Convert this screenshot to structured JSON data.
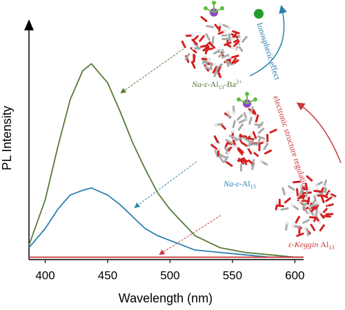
{
  "chart_data": {
    "type": "line",
    "x_label": "Wavelength (nm)",
    "y_label": "PL Intensity",
    "x": [
      387,
      400,
      410,
      420,
      430,
      437,
      450,
      460,
      470,
      480,
      490,
      500,
      520,
      540,
      560,
      580,
      600,
      607
    ],
    "series": [
      {
        "name": "Na-ε-Al13-Ba2+",
        "color": "#557a33",
        "values": [
          0.06,
          0.25,
          0.47,
          0.67,
          0.79,
          0.82,
          0.74,
          0.62,
          0.49,
          0.38,
          0.28,
          0.21,
          0.1,
          0.05,
          0.03,
          0.02,
          0.01,
          0.01
        ]
      },
      {
        "name": "Na-ε-Al13",
        "color": "#2a7fb0",
        "values": [
          0.05,
          0.13,
          0.21,
          0.27,
          0.29,
          0.3,
          0.27,
          0.23,
          0.18,
          0.13,
          0.1,
          0.08,
          0.04,
          0.03,
          0.02,
          0.01,
          0.01,
          0.01
        ]
      },
      {
        "name": "ε-Keggin Al13",
        "color": "#c9373a",
        "values": [
          0.01,
          0.01,
          0.01,
          0.01,
          0.01,
          0.01,
          0.01,
          0.01,
          0.01,
          0.01,
          0.01,
          0.01,
          0.01,
          0.01,
          0.01,
          0.01,
          0.01,
          0.01
        ]
      }
    ],
    "xlim": [
      387,
      607
    ],
    "ylim": [
      0,
      1
    ],
    "xticks": [
      400,
      450,
      500,
      550,
      600
    ],
    "labels": {
      "ba": [
        "Na-ε-",
        "Al",
        "13",
        "-Ba",
        "2+"
      ],
      "na": [
        "Na-ε-",
        "Al",
        "13"
      ],
      "keggin": [
        "ε-Keggin ",
        "Al",
        "13"
      ]
    },
    "ionospheric": "Ionospheric effect",
    "electronic": "electronic structure regulation"
  }
}
